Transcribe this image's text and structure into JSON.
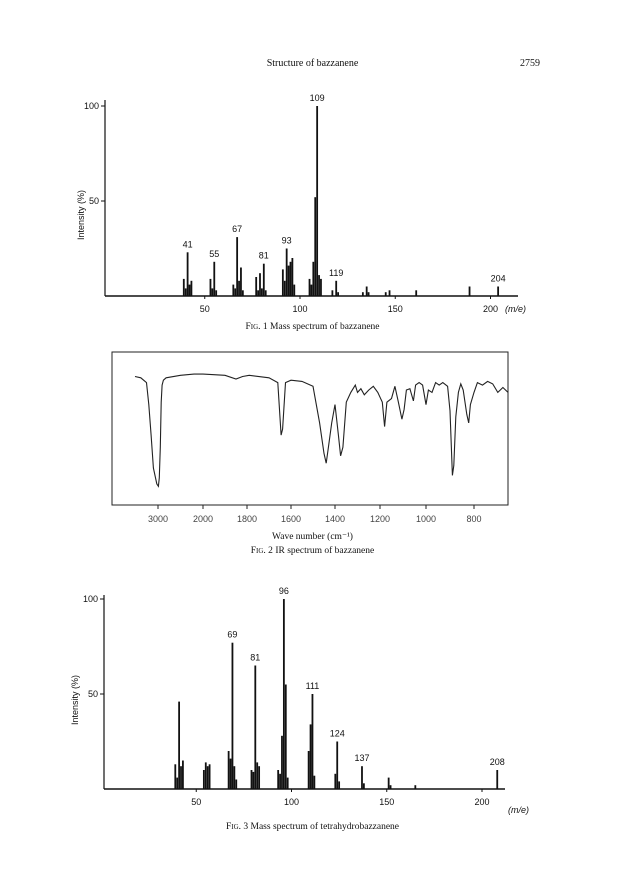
{
  "header": {
    "running_title": "Structure of bazzanene",
    "page_number": "2759"
  },
  "chart_data": [
    {
      "type": "bar",
      "title": "",
      "caption_prefix": "Fig. 1",
      "caption_text": "Mass spectrum of bazzanene",
      "ylabel": "Intensity (%)",
      "xlabel": "(m/e)",
      "xlim": [
        0,
        215
      ],
      "ylim": [
        0,
        100
      ],
      "xticks": [
        50,
        100,
        150,
        200
      ],
      "yticks": [
        50,
        100
      ],
      "labeled_peaks": [
        {
          "x": 41,
          "y": 23,
          "label": "41"
        },
        {
          "x": 55,
          "y": 18,
          "label": "55"
        },
        {
          "x": 67,
          "y": 31,
          "label": "67"
        },
        {
          "x": 81,
          "y": 17,
          "label": "81"
        },
        {
          "x": 93,
          "y": 25,
          "label": "93"
        },
        {
          "x": 109,
          "y": 100,
          "label": "109"
        },
        {
          "x": 119,
          "y": 8,
          "label": "119"
        },
        {
          "x": 204,
          "y": 5,
          "label": "204"
        }
      ],
      "peaks": [
        {
          "x": 39,
          "y": 9
        },
        {
          "x": 40,
          "y": 4
        },
        {
          "x": 41,
          "y": 23
        },
        {
          "x": 42,
          "y": 6
        },
        {
          "x": 43,
          "y": 8
        },
        {
          "x": 53,
          "y": 9
        },
        {
          "x": 54,
          "y": 4
        },
        {
          "x": 55,
          "y": 18
        },
        {
          "x": 56,
          "y": 3
        },
        {
          "x": 65,
          "y": 6
        },
        {
          "x": 66,
          "y": 4
        },
        {
          "x": 67,
          "y": 31
        },
        {
          "x": 68,
          "y": 8
        },
        {
          "x": 69,
          "y": 15
        },
        {
          "x": 70,
          "y": 3
        },
        {
          "x": 77,
          "y": 10
        },
        {
          "x": 78,
          "y": 3
        },
        {
          "x": 79,
          "y": 12
        },
        {
          "x": 80,
          "y": 4
        },
        {
          "x": 81,
          "y": 17
        },
        {
          "x": 82,
          "y": 3
        },
        {
          "x": 91,
          "y": 14
        },
        {
          "x": 92,
          "y": 8
        },
        {
          "x": 93,
          "y": 25
        },
        {
          "x": 94,
          "y": 16
        },
        {
          "x": 95,
          "y": 18
        },
        {
          "x": 96,
          "y": 20
        },
        {
          "x": 97,
          "y": 6
        },
        {
          "x": 105,
          "y": 9
        },
        {
          "x": 106,
          "y": 6
        },
        {
          "x": 107,
          "y": 18
        },
        {
          "x": 108,
          "y": 52
        },
        {
          "x": 109,
          "y": 100
        },
        {
          "x": 110,
          "y": 11
        },
        {
          "x": 111,
          "y": 9
        },
        {
          "x": 117,
          "y": 3
        },
        {
          "x": 119,
          "y": 8
        },
        {
          "x": 120,
          "y": 2
        },
        {
          "x": 133,
          "y": 2
        },
        {
          "x": 135,
          "y": 5
        },
        {
          "x": 136,
          "y": 2
        },
        {
          "x": 145,
          "y": 2
        },
        {
          "x": 147,
          "y": 3
        },
        {
          "x": 161,
          "y": 3
        },
        {
          "x": 189,
          "y": 5
        },
        {
          "x": 204,
          "y": 5
        }
      ]
    },
    {
      "type": "line",
      "title": "",
      "caption_prefix": "Fig. 2",
      "caption_text": "IR spectrum of bazzanene",
      "xlabel": "Wave number (cm⁻¹)",
      "xticks": [
        3000,
        2000,
        1800,
        1600,
        1400,
        1200,
        1000,
        800
      ],
      "ylim": [
        0,
        100
      ],
      "points": [
        [
          3200,
          93
        ],
        [
          3150,
          92
        ],
        [
          3100,
          88
        ],
        [
          3080,
          70
        ],
        [
          3060,
          45
        ],
        [
          3040,
          18
        ],
        [
          3010,
          5
        ],
        [
          2990,
          3
        ],
        [
          2970,
          10
        ],
        [
          2950,
          35
        ],
        [
          2930,
          72
        ],
        [
          2910,
          86
        ],
        [
          2880,
          90
        ],
        [
          2820,
          92
        ],
        [
          2500,
          94
        ],
        [
          2200,
          95
        ],
        [
          2000,
          95
        ],
        [
          1900,
          94
        ],
        [
          1850,
          91
        ],
        [
          1820,
          93
        ],
        [
          1790,
          94
        ],
        [
          1700,
          92
        ],
        [
          1660,
          88
        ],
        [
          1645,
          45
        ],
        [
          1638,
          50
        ],
        [
          1625,
          88
        ],
        [
          1600,
          90
        ],
        [
          1550,
          89
        ],
        [
          1500,
          85
        ],
        [
          1470,
          55
        ],
        [
          1450,
          30
        ],
        [
          1440,
          22
        ],
        [
          1430,
          35
        ],
        [
          1415,
          55
        ],
        [
          1400,
          70
        ],
        [
          1385,
          45
        ],
        [
          1375,
          28
        ],
        [
          1365,
          35
        ],
        [
          1350,
          72
        ],
        [
          1330,
          80
        ],
        [
          1310,
          86
        ],
        [
          1300,
          80
        ],
        [
          1285,
          83
        ],
        [
          1270,
          78
        ],
        [
          1250,
          82
        ],
        [
          1230,
          85
        ],
        [
          1210,
          80
        ],
        [
          1190,
          72
        ],
        [
          1180,
          52
        ],
        [
          1170,
          72
        ],
        [
          1150,
          75
        ],
        [
          1135,
          85
        ],
        [
          1120,
          72
        ],
        [
          1105,
          58
        ],
        [
          1095,
          66
        ],
        [
          1085,
          82
        ],
        [
          1070,
          83
        ],
        [
          1055,
          73
        ],
        [
          1045,
          86
        ],
        [
          1030,
          88
        ],
        [
          1015,
          86
        ],
        [
          1000,
          70
        ],
        [
          990,
          82
        ],
        [
          975,
          80
        ],
        [
          960,
          88
        ],
        [
          945,
          86
        ],
        [
          930,
          88
        ],
        [
          910,
          85
        ],
        [
          900,
          65
        ],
        [
          890,
          12
        ],
        [
          884,
          20
        ],
        [
          876,
          60
        ],
        [
          865,
          80
        ],
        [
          855,
          87
        ],
        [
          845,
          82
        ],
        [
          830,
          62
        ],
        [
          822,
          55
        ],
        [
          815,
          70
        ],
        [
          800,
          80
        ],
        [
          790,
          88
        ],
        [
          775,
          86
        ],
        [
          760,
          89
        ],
        [
          745,
          87
        ],
        [
          730,
          80
        ],
        [
          715,
          84
        ],
        [
          700,
          80
        ]
      ]
    },
    {
      "type": "bar",
      "title": "",
      "caption_prefix": "Fig. 3",
      "caption_text": "Mass spectrum of tetrahydrobazzanene",
      "ylabel": "Intensity (%)",
      "xlabel": "(m/e)",
      "xlim": [
        0,
        215
      ],
      "ylim": [
        0,
        100
      ],
      "xticks": [
        50,
        100,
        150,
        200
      ],
      "yticks": [
        50,
        100
      ],
      "labeled_peaks": [
        {
          "x": 69,
          "y": 77,
          "label": "69"
        },
        {
          "x": 81,
          "y": 65,
          "label": "81"
        },
        {
          "x": 96,
          "y": 100,
          "label": "96"
        },
        {
          "x": 111,
          "y": 50,
          "label": "111"
        },
        {
          "x": 124,
          "y": 25,
          "label": "124"
        },
        {
          "x": 137,
          "y": 12,
          "label": "137"
        },
        {
          "x": 208,
          "y": 10,
          "label": "208"
        }
      ],
      "peaks": [
        {
          "x": 39,
          "y": 13
        },
        {
          "x": 40,
          "y": 6
        },
        {
          "x": 41,
          "y": 46
        },
        {
          "x": 42,
          "y": 12
        },
        {
          "x": 43,
          "y": 15
        },
        {
          "x": 54,
          "y": 10
        },
        {
          "x": 55,
          "y": 14
        },
        {
          "x": 56,
          "y": 12
        },
        {
          "x": 57,
          "y": 13
        },
        {
          "x": 67,
          "y": 20
        },
        {
          "x": 68,
          "y": 16
        },
        {
          "x": 69,
          "y": 77
        },
        {
          "x": 70,
          "y": 12
        },
        {
          "x": 71,
          "y": 5
        },
        {
          "x": 79,
          "y": 10
        },
        {
          "x": 80,
          "y": 9
        },
        {
          "x": 81,
          "y": 65
        },
        {
          "x": 82,
          "y": 14
        },
        {
          "x": 83,
          "y": 12
        },
        {
          "x": 93,
          "y": 10
        },
        {
          "x": 94,
          "y": 8
        },
        {
          "x": 95,
          "y": 28
        },
        {
          "x": 96,
          "y": 100
        },
        {
          "x": 97,
          "y": 55
        },
        {
          "x": 98,
          "y": 6
        },
        {
          "x": 109,
          "y": 20
        },
        {
          "x": 110,
          "y": 34
        },
        {
          "x": 111,
          "y": 50
        },
        {
          "x": 112,
          "y": 7
        },
        {
          "x": 123,
          "y": 8
        },
        {
          "x": 124,
          "y": 25
        },
        {
          "x": 125,
          "y": 4
        },
        {
          "x": 137,
          "y": 12
        },
        {
          "x": 138,
          "y": 3
        },
        {
          "x": 151,
          "y": 6
        },
        {
          "x": 152,
          "y": 2
        },
        {
          "x": 165,
          "y": 2
        },
        {
          "x": 208,
          "y": 10
        }
      ]
    }
  ]
}
